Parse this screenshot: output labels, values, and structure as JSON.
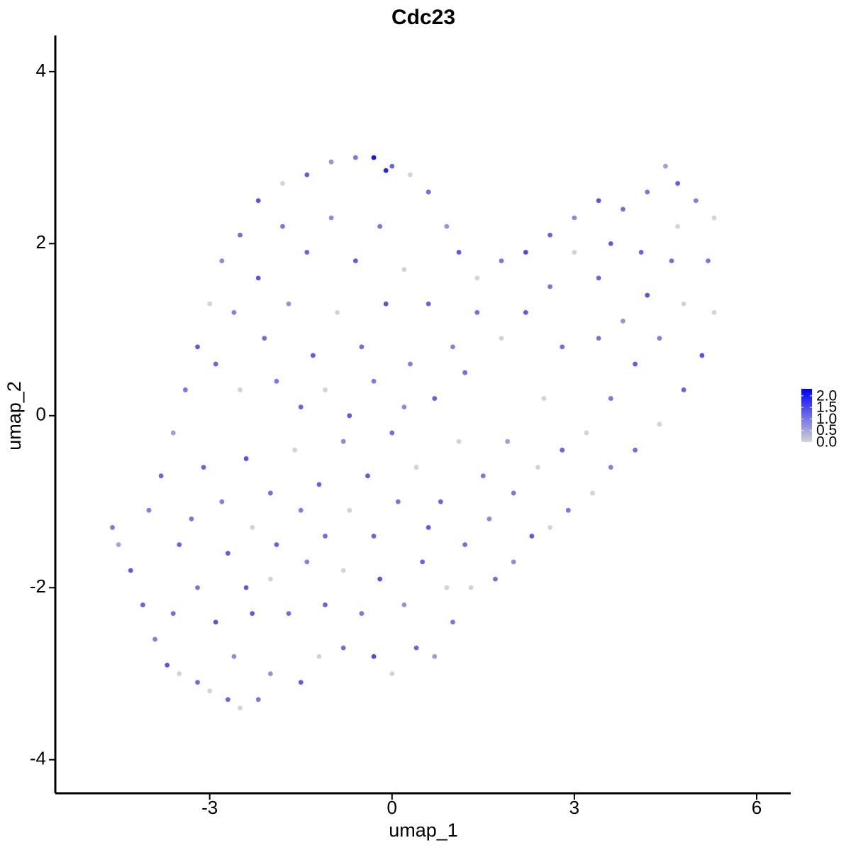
{
  "chart_data": {
    "type": "scatter",
    "title": "Cdc23",
    "xlabel": "umap_1",
    "ylabel": "umap_2",
    "xlim": [
      -5.54,
      6.56
    ],
    "ylim": [
      -4.39,
      4.42
    ],
    "xticks": [
      -3,
      0,
      3,
      6
    ],
    "yticks": [
      -4,
      -2,
      0,
      2,
      4
    ],
    "x": [
      -4.6,
      -4.5,
      -4.3,
      -4.1,
      -3.9,
      -3.7,
      -3.5,
      -3.2,
      -3.0,
      -2.7,
      -2.5,
      -2.2,
      -2.0,
      -1.5,
      -1.2,
      -0.8,
      -0.3,
      0.0,
      0.4,
      0.7,
      1.0,
      1.3,
      1.7,
      2.0,
      2.3,
      2.6,
      2.9,
      3.3,
      3.6,
      4.0,
      4.4,
      4.8,
      5.1,
      5.3,
      5.2,
      5.3,
      5.0,
      4.7,
      4.5,
      4.2,
      3.8,
      3.4,
      3.0,
      2.6,
      2.2,
      1.8,
      1.4,
      1.1,
      0.9,
      0.6,
      0.3,
      0.0,
      -0.3,
      -0.1,
      -0.6,
      -1.0,
      -1.4,
      -1.8,
      -2.2,
      -2.5,
      -2.8,
      -3.0,
      -3.2,
      -3.4,
      -3.6,
      -3.8,
      -4.0,
      -3.5,
      -3.2,
      -2.9,
      -2.6,
      -2.3,
      -2.0,
      -1.7,
      -1.4,
      -1.1,
      -0.8,
      -0.5,
      -0.2,
      0.2,
      0.5,
      0.9,
      1.2,
      1.6,
      2.0,
      2.4,
      2.8,
      3.2,
      3.6,
      4.0,
      4.4,
      4.8,
      4.6,
      4.2,
      3.8,
      3.4,
      3.0,
      2.6,
      2.2,
      1.8,
      1.4,
      1.0,
      0.6,
      0.2,
      -0.2,
      -0.6,
      -1.0,
      -1.4,
      -1.8,
      -2.2,
      -2.6,
      -2.9,
      -2.5,
      -2.1,
      -1.7,
      -1.3,
      -0.9,
      -0.5,
      -0.1,
      0.3,
      0.7,
      1.1,
      1.5,
      1.9,
      2.5,
      2.8,
      3.4,
      4.1,
      4.7,
      3.6,
      0.8,
      0.4,
      0.0,
      -0.4,
      -0.8,
      -1.2,
      -1.6,
      -2.0,
      -2.4,
      -2.8,
      -3.1,
      -3.3,
      -2.7,
      -2.3,
      -1.9,
      -1.5,
      -1.1,
      -0.7,
      -0.3,
      0.1,
      0.6,
      -1.9,
      -1.5,
      -1.1,
      -0.7,
      -0.3,
      0.2,
      1.2,
      -2.4,
      -3.6
    ],
    "values": [
      -1.3,
      -1.5,
      -1.8,
      -2.2,
      -2.6,
      -2.9,
      -3.0,
      -3.1,
      -3.2,
      -3.3,
      -3.4,
      -3.3,
      -3.0,
      -3.1,
      -2.8,
      -2.7,
      -2.8,
      -3.0,
      -2.7,
      -2.8,
      -2.4,
      -2.0,
      -1.9,
      -1.7,
      -1.4,
      -1.3,
      -1.1,
      -0.9,
      -0.6,
      -0.4,
      -0.1,
      0.3,
      0.7,
      1.2,
      1.8,
      2.3,
      2.5,
      2.7,
      2.9,
      2.6,
      2.4,
      2.5,
      2.3,
      2.1,
      1.9,
      1.8,
      1.6,
      1.9,
      2.2,
      2.6,
      2.8,
      2.9,
      3.0,
      2.85,
      3.0,
      2.95,
      2.8,
      2.7,
      2.5,
      2.1,
      1.8,
      1.3,
      0.8,
      0.3,
      -0.2,
      -0.7,
      -1.1,
      -1.5,
      -2.0,
      -2.4,
      -2.8,
      -2.3,
      -1.9,
      -2.3,
      -1.7,
      -2.2,
      -1.8,
      -2.3,
      -1.9,
      -2.2,
      -1.7,
      -2.0,
      -1.5,
      -1.2,
      -0.9,
      -0.6,
      -0.4,
      -0.2,
      0.2,
      0.6,
      0.9,
      1.3,
      1.8,
      1.4,
      1.1,
      1.6,
      1.9,
      1.5,
      1.2,
      0.9,
      1.2,
      0.8,
      1.3,
      1.7,
      2.2,
      1.8,
      2.3,
      1.9,
      2.2,
      1.6,
      1.2,
      0.6,
      0.3,
      0.9,
      1.3,
      0.7,
      1.2,
      0.8,
      1.3,
      0.6,
      0.2,
      -0.3,
      -0.7,
      -0.3,
      0.2,
      0.8,
      0.9,
      1.9,
      2.2,
      2.0,
      -1.0,
      -0.6,
      -0.2,
      -0.7,
      -0.3,
      -0.8,
      -0.4,
      -0.9,
      -0.5,
      -1.0,
      -0.6,
      -1.2,
      -1.6,
      -1.3,
      -1.5,
      -1.1,
      -1.4,
      -1.1,
      -1.4,
      -1.0,
      -1.3,
      0.4,
      0.1,
      0.3,
      0.0,
      0.4,
      0.1,
      0.5,
      -2.0,
      -2.3
    ],
    "expression": [
      1.0,
      0.5,
      1.3,
      1.2,
      0.9,
      1.4,
      0.0,
      1.1,
      0.0,
      1.2,
      0.0,
      1.0,
      0.7,
      1.3,
      0.0,
      1.1,
      1.5,
      0.0,
      1.2,
      0.6,
      1.0,
      0.0,
      1.1,
      0.8,
      1.3,
      0.0,
      1.0,
      0.0,
      0.9,
      1.1,
      0.0,
      1.2,
      1.4,
      0.0,
      1.0,
      0.0,
      0.9,
      1.3,
      0.6,
      1.0,
      1.1,
      1.4,
      0.8,
      1.2,
      1.5,
      1.0,
      0.0,
      1.3,
      0.7,
      1.1,
      0.0,
      1.2,
      2.1,
      1.9,
      1.0,
      0.7,
      1.3,
      0.0,
      1.4,
      1.1,
      0.8,
      0.0,
      1.3,
      1.0,
      0.6,
      1.2,
      0.9,
      1.2,
      1.0,
      1.4,
      0.8,
      1.3,
      0.0,
      1.1,
      0.9,
      1.2,
      0.0,
      1.0,
      1.4,
      0.7,
      1.2,
      0.0,
      1.1,
      0.8,
      1.0,
      0.0,
      1.2,
      0.0,
      1.0,
      1.3,
      0.9,
      0.0,
      1.1,
      1.4,
      0.7,
      1.2,
      0.0,
      1.0,
      1.3,
      0.0,
      1.1,
      0.9,
      1.2,
      0.0,
      1.0,
      1.3,
      0.8,
      1.2,
      1.0,
      1.4,
      0.9,
      1.2,
      0.0,
      1.1,
      0.7,
      1.3,
      0.0,
      1.1,
      1.4,
      0.9,
      1.2,
      0.0,
      1.0,
      0.6,
      0.0,
      1.1,
      1.0,
      1.2,
      0.0,
      1.3,
      1.2,
      0.0,
      1.1,
      1.3,
      0.8,
      1.2,
      0.0,
      1.1,
      1.4,
      0.9,
      1.2,
      1.0,
      1.3,
      0.0,
      1.2,
      0.9,
      1.1,
      0.0,
      1.2,
      1.0,
      1.3,
      1.0,
      1.2,
      0.0,
      1.3,
      1.0,
      0.8,
      1.1,
      1.3,
      1.1
    ],
    "colorbar": {
      "lim": [
        0,
        2.3
      ],
      "low": "#d3d3d3",
      "high": "#0000ff",
      "ticks": [
        {
          "value": 0,
          "label": "0.0"
        },
        {
          "value": 0.5,
          "label": "0.5"
        },
        {
          "value": 1,
          "label": "1.0"
        },
        {
          "value": 1.5,
          "label": "1.5"
        },
        {
          "value": 2,
          "label": "2.0"
        }
      ]
    }
  }
}
